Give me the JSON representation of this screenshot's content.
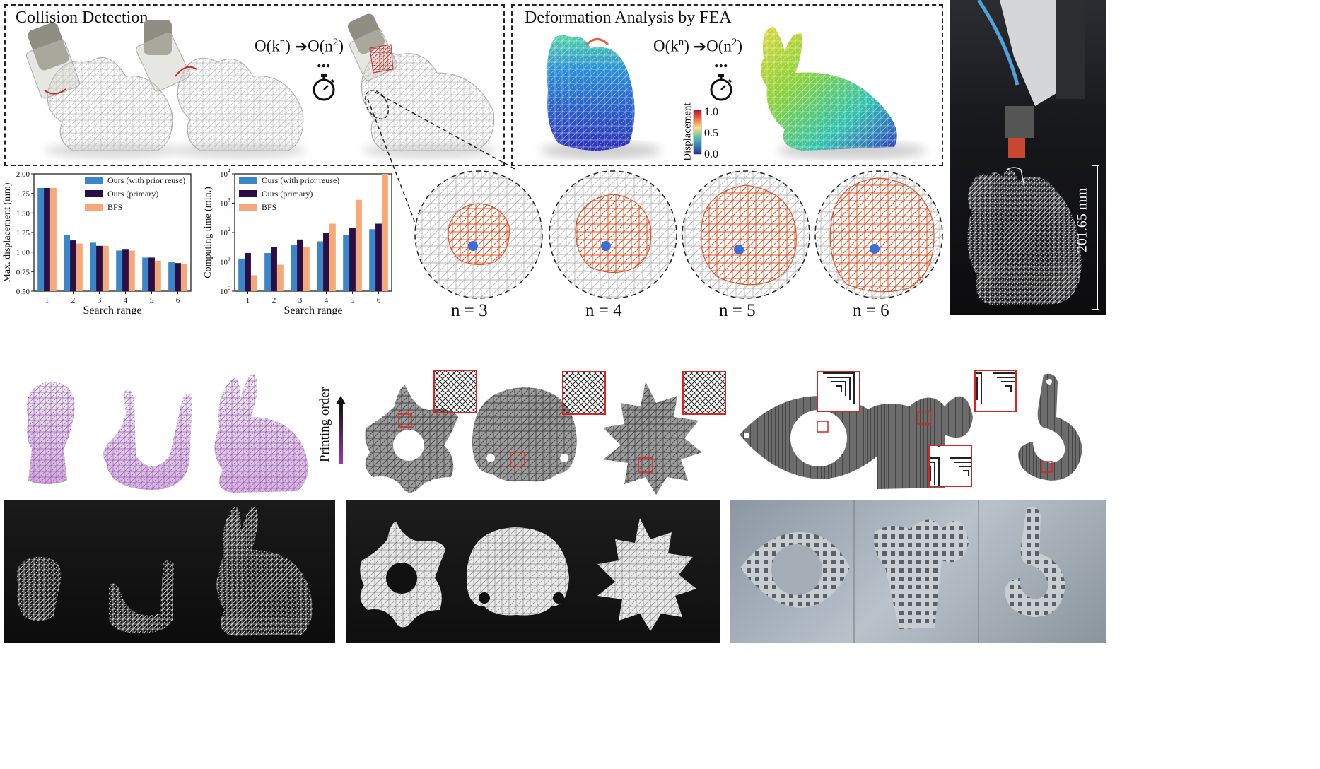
{
  "collision": {
    "title": "Collision Detection",
    "complexity_from": "O(k",
    "complexity_from_exp": "n",
    "complexity_to": "O(n",
    "complexity_to_exp": "2",
    "dots": "...",
    "timer_icon": "stopwatch-icon"
  },
  "fea": {
    "title": "Deformation Analysis by FEA",
    "complexity_from": "O(k",
    "complexity_from_exp": "n",
    "complexity_to": "O(n",
    "complexity_to_exp": "2",
    "dots": "...",
    "colorbar_label": "Displacement",
    "colorbar_ticks": [
      "1.0",
      "0.5",
      "0.0"
    ]
  },
  "neighborhood": {
    "labels": [
      "n = 3",
      "n = 4",
      "n = 5",
      "n = 6"
    ]
  },
  "scale_label": "201.65 mm",
  "printing_order_label": "Printing order",
  "chart_data": [
    {
      "type": "bar",
      "categories": [
        "1",
        "2",
        "3",
        "4",
        "5",
        "6"
      ],
      "series": [
        {
          "name": "Ours (with prior reuse)",
          "color": "#3a86c8",
          "values": [
            1.82,
            1.22,
            1.12,
            1.02,
            0.93,
            0.87
          ]
        },
        {
          "name": "Ours (primary)",
          "color": "#2a0e45",
          "values": [
            1.82,
            1.15,
            1.08,
            1.04,
            0.93,
            0.86
          ]
        },
        {
          "name": "BFS",
          "color": "#f5a878",
          "values": [
            1.82,
            1.11,
            1.08,
            1.02,
            0.89,
            0.85
          ]
        }
      ],
      "xlabel": "Search range",
      "ylabel": "Max. displacement (mm)",
      "ylim": [
        0.5,
        2.0
      ],
      "yticks": [
        "0.50",
        "0.75",
        "1.00",
        "1.25",
        "1.50",
        "1.75",
        "2.00"
      ],
      "legend": "top-right"
    },
    {
      "type": "bar",
      "scale": "log",
      "categories": [
        "1",
        "2",
        "3",
        "4",
        "5",
        "6"
      ],
      "series": [
        {
          "name": "Ours (with prior reuse)",
          "color": "#3a86c8",
          "values": [
            13,
            20,
            38,
            50,
            80,
            130
          ]
        },
        {
          "name": "Ours (primary)",
          "color": "#2a0e45",
          "values": [
            20,
            33,
            58,
            95,
            140,
            200
          ]
        },
        {
          "name": "BFS",
          "color": "#f5a878",
          "values": [
            3.5,
            8,
            33,
            200,
            1300,
            10000
          ]
        }
      ],
      "xlabel": "Search range",
      "ylabel": "Computing time (min.)",
      "ylim": [
        1,
        10000
      ],
      "yticks": [
        "10",
        "10",
        "10",
        "10",
        "10"
      ],
      "ytick_exps": [
        "0",
        "1",
        "2",
        "3",
        "4"
      ],
      "legend": "top-left"
    }
  ]
}
